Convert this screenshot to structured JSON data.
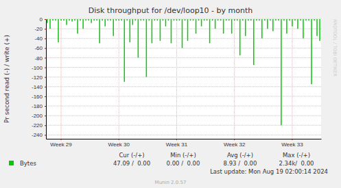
{
  "chart_data": {
    "type": "bar",
    "title": "Disk throughput for /dev/loop10 - by month",
    "y_label": "Pr second read (-) / write (+)",
    "categories": [
      null,
      null,
      null,
      null,
      null,
      "Week 29",
      null,
      null,
      null,
      null,
      null,
      null,
      null,
      null,
      null,
      null,
      null,
      null,
      null,
      null,
      null,
      null,
      null,
      null,
      null,
      null,
      "Week 30",
      null,
      null,
      null,
      null,
      null,
      null,
      null,
      null,
      null,
      null,
      null,
      null,
      null,
      null,
      null,
      null,
      null,
      null,
      null,
      null,
      "Week 31",
      null,
      null,
      null,
      null,
      null,
      null,
      null,
      null,
      null,
      null,
      null,
      null,
      null,
      null,
      null,
      null,
      null,
      null,
      null,
      null,
      "Week 32",
      null,
      null,
      null,
      null,
      null,
      null,
      null,
      null,
      null,
      null,
      null,
      null,
      null,
      null,
      null,
      null,
      null,
      null,
      null,
      null,
      "Week 33",
      null,
      null,
      null,
      null,
      null,
      null,
      null,
      null,
      null,
      null
    ],
    "series": [
      {
        "name": "Bytes",
        "color": "#00cc00",
        "values": [
          -8,
          -20,
          -3,
          -3,
          -48,
          -3,
          -3,
          -12,
          -3,
          -5,
          -3,
          -30,
          -3,
          -20,
          -3,
          -3,
          -8,
          -3,
          -3,
          -50,
          -3,
          -15,
          -3,
          -3,
          -35,
          -3,
          -3,
          -3,
          -130,
          -3,
          -48,
          -12,
          -3,
          -80,
          -3,
          -3,
          -120,
          -3,
          -50,
          -3,
          -3,
          -45,
          -3,
          -15,
          -3,
          -50,
          -3,
          -3,
          -3,
          -60,
          -3,
          -45,
          -3,
          -3,
          -30,
          -3,
          -15,
          -3,
          -3,
          -50,
          -3,
          -20,
          -3,
          -3,
          -30,
          -3,
          -3,
          -30,
          -3,
          -3,
          -75,
          -3,
          -35,
          -3,
          -3,
          -95,
          -3,
          -3,
          -40,
          -3,
          -20,
          -3,
          -25,
          -3,
          -3,
          -220,
          -3,
          -30,
          -3,
          -15,
          -3,
          -20,
          -3,
          -40,
          -3,
          -3,
          -135,
          -3,
          -35,
          -45
        ],
        "stats": [
          "47.09 /  0.00",
          "0.00 /  0.00",
          "8.93 /  0.00",
          "2.34k/  0.00"
        ]
      }
    ],
    "stats_header": [
      "Cur (-/+)",
      "Min (-/+)",
      "Avg (-/+)",
      "Max (-/+)"
    ],
    "ylim": [
      -248,
      0
    ],
    "yticks": [
      0,
      -20,
      -40,
      -60,
      -80,
      -100,
      -120,
      -140,
      -160,
      -180,
      -200,
      -220,
      -240
    ],
    "grid": true,
    "legend": "bottom",
    "annotations": [
      "Last update: Mon Aug 19 02:00:14 2024",
      "Munin 2.0.57",
      "RRDTOOL / TOBI OETIKER"
    ]
  }
}
